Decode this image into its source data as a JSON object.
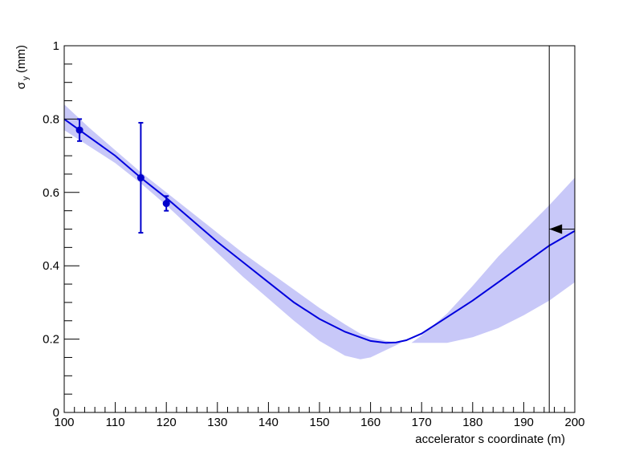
{
  "chart_data": {
    "type": "line",
    "xlabel": "accelerator s coordinate (m)",
    "ylabel": {
      "symbol": "σ",
      "subscript": "y",
      "unit": "(mm)"
    },
    "xlim": [
      100,
      200
    ],
    "ylim": [
      0,
      1
    ],
    "x_ticks": [
      100,
      110,
      120,
      130,
      140,
      150,
      160,
      170,
      180,
      190,
      200
    ],
    "x_tick_labels": [
      "100",
      "110",
      "120",
      "130",
      "140",
      "150",
      "160",
      "170",
      "180",
      "190",
      "200"
    ],
    "y_ticks": [
      0,
      0.2,
      0.4,
      0.6,
      0.8,
      1
    ],
    "y_tick_labels": [
      "0",
      "0.2",
      "0.4",
      "0.6",
      "0.8",
      "1"
    ],
    "grid": false,
    "colors": {
      "line": "#0000dd",
      "band": "#c8c8f8",
      "marker": "#0000cc",
      "axis": "#000000"
    },
    "fit_curve": {
      "x": [
        100,
        105,
        110,
        115,
        120,
        125,
        130,
        135,
        140,
        145,
        150,
        155,
        160,
        163,
        165,
        167,
        170,
        175,
        180,
        185,
        190,
        195,
        200
      ],
      "y": [
        0.8,
        0.75,
        0.7,
        0.64,
        0.585,
        0.525,
        0.465,
        0.41,
        0.355,
        0.3,
        0.255,
        0.22,
        0.195,
        0.19,
        0.191,
        0.197,
        0.215,
        0.26,
        0.305,
        0.355,
        0.405,
        0.455,
        0.495
      ]
    },
    "error_band": {
      "x": [
        100,
        105,
        110,
        115,
        120,
        125,
        130,
        135,
        140,
        145,
        150,
        155,
        158,
        160,
        163,
        166,
        168,
        170,
        175,
        180,
        185,
        190,
        195,
        200
      ],
      "upper": [
        0.84,
        0.775,
        0.715,
        0.655,
        0.6,
        0.545,
        0.49,
        0.435,
        0.385,
        0.335,
        0.285,
        0.24,
        0.215,
        0.205,
        0.195,
        0.19,
        0.19,
        0.21,
        0.27,
        0.345,
        0.425,
        0.495,
        0.565,
        0.64
      ],
      "lower": [
        0.77,
        0.725,
        0.68,
        0.625,
        0.565,
        0.5,
        0.435,
        0.37,
        0.31,
        0.25,
        0.195,
        0.155,
        0.145,
        0.15,
        0.17,
        0.19,
        0.19,
        0.19,
        0.19,
        0.205,
        0.23,
        0.265,
        0.305,
        0.355
      ]
    },
    "data_points": [
      {
        "x": 103,
        "y": 0.77,
        "err": 0.03
      },
      {
        "x": 115,
        "y": 0.64,
        "err": 0.15
      },
      {
        "x": 120,
        "y": 0.57,
        "err": 0.02
      }
    ],
    "vertical_marker_x": 195,
    "arrow": {
      "x_tip": 195,
      "x_tail": 200,
      "y": 0.5
    }
  }
}
